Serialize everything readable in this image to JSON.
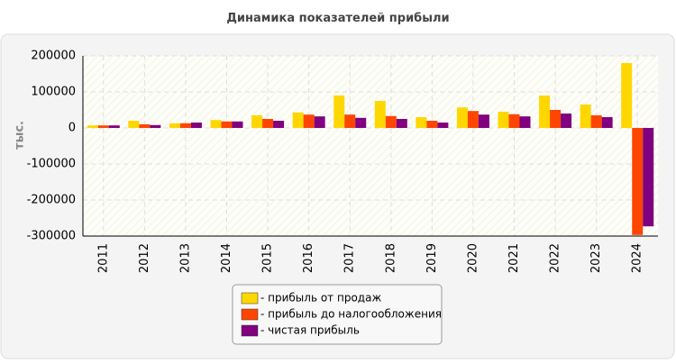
{
  "chart_data": {
    "type": "bar",
    "title": "Динамика показателей прибыли",
    "y_label": "тыс.",
    "categories": [
      "2011",
      "2012",
      "2013",
      "2014",
      "2015",
      "2016",
      "2017",
      "2018",
      "2019",
      "2020",
      "2021",
      "2022",
      "2023",
      "2024"
    ],
    "series": [
      {
        "name": "- прибыль от продаж",
        "color": "#ffd700",
        "values": [
          7000,
          20000,
          13000,
          22000,
          35000,
          43000,
          90000,
          75000,
          30000,
          57000,
          45000,
          90000,
          65000,
          180000
        ]
      },
      {
        "name": "- прибыль до налогообложения",
        "color": "#ff4500",
        "values": [
          7000,
          10000,
          13000,
          18000,
          25000,
          37000,
          37000,
          33000,
          20000,
          47000,
          38000,
          50000,
          35000,
          -297000
        ]
      },
      {
        "name": "- чистая прибыль",
        "color": "#800080",
        "values": [
          7000,
          8000,
          15000,
          18000,
          20000,
          32000,
          28000,
          25000,
          15000,
          37000,
          32000,
          40000,
          30000,
          -273000
        ]
      }
    ],
    "ylim": [
      -300000,
      200000
    ],
    "yticks": [
      -300000,
      -200000,
      -100000,
      0,
      100000,
      200000
    ],
    "grid": true
  }
}
